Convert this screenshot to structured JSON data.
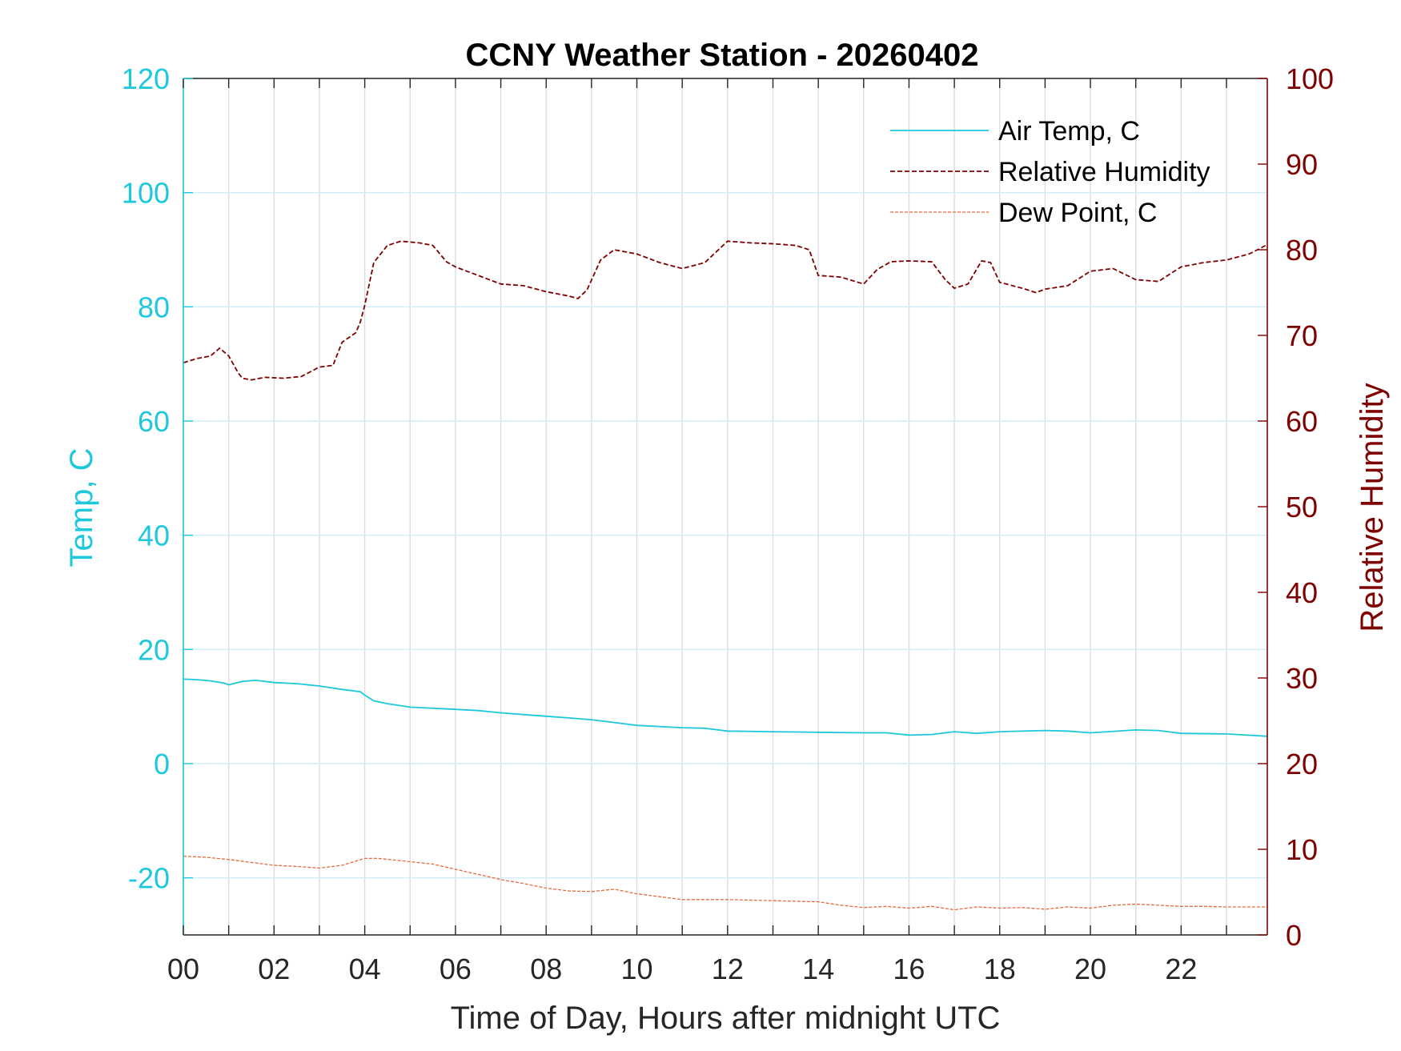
{
  "chart_data": {
    "type": "line",
    "title": "CCNY Weather Station - 20260402",
    "xlabel": "Time of Day, Hours after midnight UTC",
    "ylabel_left": "Temp, C",
    "ylabel_right": "Relative Humidity",
    "xlim": [
      0,
      23.9
    ],
    "ylim_left": [
      -30,
      120
    ],
    "ylim_right": [
      0,
      100
    ],
    "x_ticks": [
      0,
      2,
      4,
      6,
      8,
      10,
      12,
      14,
      16,
      18,
      20,
      22
    ],
    "x_tick_labels": [
      "00",
      "02",
      "04",
      "06",
      "08",
      "10",
      "12",
      "14",
      "16",
      "18",
      "20",
      "22"
    ],
    "y_left_ticks": [
      -20,
      0,
      20,
      40,
      60,
      80,
      100,
      120
    ],
    "y_right_ticks": [
      0,
      10,
      20,
      30,
      40,
      50,
      60,
      70,
      80,
      90,
      100
    ],
    "grid": true,
    "legend_position": "top-right",
    "colors": {
      "left_axis": "#1ec8dc",
      "right_axis": "#7f0000",
      "axis": "#262626",
      "grid_vertical": "#d8dee4",
      "grid_horizontal": "#cfeff5"
    },
    "series": [
      {
        "name": "Air Temp, C",
        "axis": "left",
        "color": "#1ec8dc",
        "dash": "solid",
        "x": [
          0,
          0.3,
          0.6,
          0.9,
          1.0,
          1.1,
          1.3,
          1.6,
          2.0,
          2.5,
          3.0,
          3.5,
          3.9,
          4.0,
          4.2,
          4.5,
          5.0,
          6.0,
          6.5,
          7.0,
          7.5,
          8.0,
          8.5,
          9.0,
          9.5,
          10.0,
          11.0,
          11.5,
          12.0,
          13.0,
          14.0,
          15.0,
          15.5,
          16.0,
          16.5,
          17.0,
          17.5,
          18.0,
          19.0,
          19.5,
          20.0,
          21.0,
          21.5,
          22.0,
          23.0,
          23.9
        ],
        "y": [
          14.8,
          14.7,
          14.5,
          14.1,
          13.8,
          14.0,
          14.4,
          14.6,
          14.2,
          14.0,
          13.6,
          13.0,
          12.6,
          12.0,
          11.0,
          10.5,
          9.9,
          9.5,
          9.3,
          8.9,
          8.6,
          8.3,
          8.0,
          7.7,
          7.2,
          6.7,
          6.3,
          6.2,
          5.7,
          5.6,
          5.5,
          5.4,
          5.4,
          5.0,
          5.1,
          5.6,
          5.3,
          5.6,
          5.8,
          5.7,
          5.4,
          5.9,
          5.8,
          5.3,
          5.2,
          4.8
        ]
      },
      {
        "name": "Relative Humidity",
        "axis": "right",
        "color": "#7f0000",
        "dash": "dashed",
        "x": [
          0,
          0.3,
          0.6,
          0.8,
          1.0,
          1.2,
          1.3,
          1.5,
          1.8,
          2.2,
          2.6,
          3.0,
          3.3,
          3.5,
          3.8,
          3.9,
          4.0,
          4.2,
          4.5,
          4.8,
          5.2,
          5.5,
          5.8,
          6.0,
          6.5,
          7.0,
          7.5,
          8.0,
          8.5,
          8.7,
          8.9,
          9.2,
          9.5,
          10.0,
          10.5,
          11.0,
          11.5,
          12.0,
          12.5,
          13.0,
          13.5,
          13.8,
          14.0,
          14.5,
          15.0,
          15.3,
          15.6,
          16.0,
          16.5,
          16.8,
          17.0,
          17.3,
          17.6,
          17.8,
          18.0,
          18.5,
          18.8,
          19.0,
          19.5,
          20.0,
          20.5,
          21.0,
          21.5,
          22.0,
          22.5,
          23.0,
          23.5,
          23.9
        ],
        "y": [
          66.8,
          67.3,
          67.6,
          68.5,
          67.6,
          65.7,
          65.0,
          64.8,
          65.1,
          65.0,
          65.2,
          66.3,
          66.5,
          69.2,
          70.3,
          71.5,
          73.5,
          78.5,
          80.5,
          81.0,
          80.8,
          80.5,
          78.6,
          78.0,
          77.0,
          76.0,
          75.8,
          75.1,
          74.6,
          74.3,
          75.3,
          78.8,
          80.0,
          79.5,
          78.5,
          77.8,
          78.5,
          81.0,
          80.8,
          80.7,
          80.5,
          80.0,
          77.0,
          76.8,
          76.0,
          77.7,
          78.6,
          78.7,
          78.6,
          76.5,
          75.5,
          76.0,
          78.7,
          78.5,
          76.2,
          75.5,
          75.0,
          75.4,
          75.8,
          77.5,
          77.8,
          76.5,
          76.3,
          78.0,
          78.5,
          78.8,
          79.5,
          80.6
        ]
      },
      {
        "name": "Dew Point, C",
        "axis": "left",
        "color": "#e8683a",
        "dash": "dashed-thin",
        "x": [
          0,
          0.5,
          1.0,
          1.5,
          2.0,
          2.5,
          3.0,
          3.5,
          4.0,
          4.3,
          4.8,
          5.5,
          6.0,
          6.5,
          7.0,
          7.5,
          8.0,
          8.5,
          9.0,
          9.5,
          10.0,
          10.5,
          11.0,
          12.0,
          13.0,
          14.0,
          14.5,
          15.0,
          15.5,
          16.0,
          16.5,
          17.0,
          17.5,
          18.0,
          18.5,
          19.0,
          19.5,
          20.0,
          20.5,
          21.0,
          21.5,
          22.0,
          22.5,
          23.0,
          23.9
        ],
        "y": [
          -16.2,
          -16.4,
          -16.8,
          -17.3,
          -17.8,
          -18.0,
          -18.3,
          -17.8,
          -16.6,
          -16.6,
          -17.0,
          -17.6,
          -18.5,
          -19.4,
          -20.3,
          -21.0,
          -21.8,
          -22.3,
          -22.4,
          -22.0,
          -22.8,
          -23.3,
          -23.8,
          -23.8,
          -24.0,
          -24.2,
          -24.8,
          -25.2,
          -25.0,
          -25.3,
          -25.0,
          -25.6,
          -25.1,
          -25.3,
          -25.2,
          -25.5,
          -25.1,
          -25.3,
          -24.8,
          -24.6,
          -24.8,
          -25.0,
          -25.0,
          -25.1,
          -25.1
        ]
      }
    ]
  }
}
